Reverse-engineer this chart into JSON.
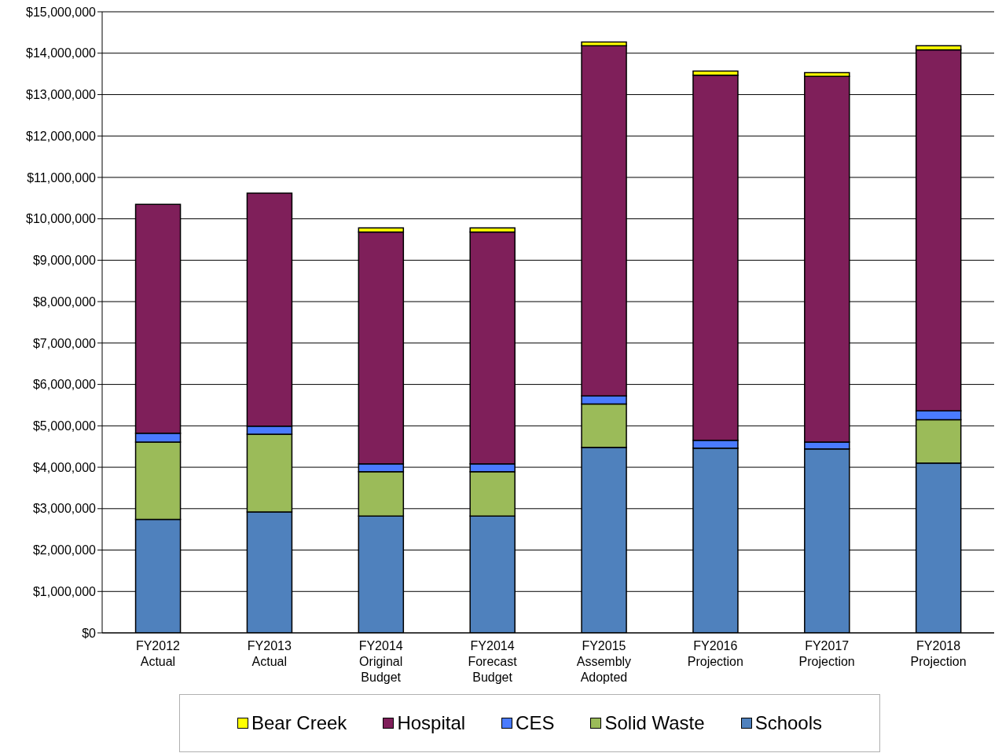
{
  "chart_data": {
    "type": "bar",
    "stacked": true,
    "categories": [
      "FY2012 Actual",
      "FY2013 Actual",
      "FY2014 Original Budget",
      "FY2014 Forecast Budget",
      "FY2015 Assembly Adopted",
      "FY2016 Projection",
      "FY2017 Projection",
      "FY2018 Projection"
    ],
    "series": [
      {
        "name": "Schools",
        "color": "#4f81bd",
        "values": [
          2740000,
          2920000,
          2820000,
          2820000,
          4480000,
          4460000,
          4440000,
          4100000
        ]
      },
      {
        "name": "Solid Waste",
        "color": "#9bbb59",
        "values": [
          1870000,
          1880000,
          1070000,
          1070000,
          1050000,
          null,
          null,
          1050000
        ]
      },
      {
        "name": "CES",
        "color": "#4a7bff",
        "values": [
          210000,
          190000,
          190000,
          190000,
          190000,
          190000,
          170000,
          210000
        ]
      },
      {
        "name": "Hospital",
        "color": "#7f1f5a",
        "values": [
          5530000,
          5630000,
          5600000,
          5600000,
          8460000,
          8820000,
          8830000,
          8720000
        ]
      },
      {
        "name": "Bear Creek",
        "color": "#ffff00",
        "values": [
          null,
          null,
          100000,
          100000,
          90000,
          100000,
          90000,
          100000
        ]
      }
    ],
    "ylim": [
      0,
      15000000
    ],
    "yticks": [
      {
        "value": 0,
        "label": "$0"
      },
      {
        "value": 1000000,
        "label": "$1,000,000"
      },
      {
        "value": 2000000,
        "label": "$2,000,000"
      },
      {
        "value": 3000000,
        "label": "$3,000,000"
      },
      {
        "value": 4000000,
        "label": "$4,000,000"
      },
      {
        "value": 5000000,
        "label": "$5,000,000"
      },
      {
        "value": 6000000,
        "label": "$6,000,000"
      },
      {
        "value": 7000000,
        "label": "$7,000,000"
      },
      {
        "value": 8000000,
        "label": "$8,000,000"
      },
      {
        "value": 9000000,
        "label": "$9,000,000"
      },
      {
        "value": 10000000,
        "label": "$10,000,000"
      },
      {
        "value": 11000000,
        "label": "$11,000,000"
      },
      {
        "value": 12000000,
        "label": "$12,000,000"
      },
      {
        "value": 13000000,
        "label": "$13,000,000"
      },
      {
        "value": 14000000,
        "label": "$14,000,000"
      },
      {
        "value": 15000000,
        "label": "$15,000,000"
      }
    ],
    "grid": "y",
    "legend": "bottom"
  }
}
